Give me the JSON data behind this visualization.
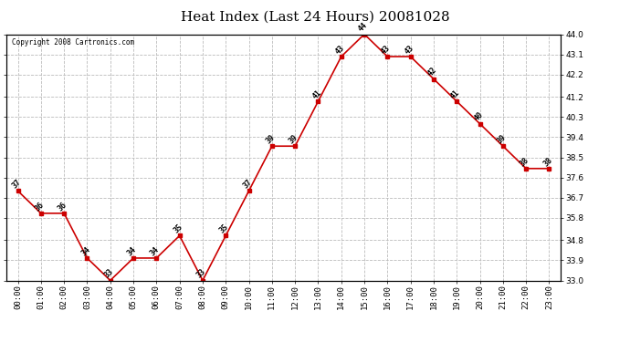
{
  "title": "Heat Index (Last 24 Hours) 20081028",
  "copyright_text": "Copyright 2008 Cartronics.com",
  "hours": [
    "00:00",
    "01:00",
    "02:00",
    "03:00",
    "04:00",
    "05:00",
    "06:00",
    "07:00",
    "08:00",
    "09:00",
    "10:00",
    "11:00",
    "12:00",
    "13:00",
    "14:00",
    "15:00",
    "16:00",
    "17:00",
    "18:00",
    "19:00",
    "20:00",
    "21:00",
    "22:00",
    "23:00"
  ],
  "values": [
    37,
    36,
    36,
    34,
    33,
    34,
    34,
    35,
    33,
    35,
    37,
    39,
    39,
    41,
    43,
    44,
    43,
    43,
    42,
    41,
    40,
    39,
    38,
    38
  ],
  "line_color": "#cc0000",
  "marker_color": "#cc0000",
  "bg_color": "#ffffff",
  "plot_bg_color": "#ffffff",
  "grid_color": "#bbbbbb",
  "ylim_min": 33.0,
  "ylim_max": 44.0,
  "yticks": [
    33.0,
    33.9,
    34.8,
    35.8,
    36.7,
    37.6,
    38.5,
    39.4,
    40.3,
    41.2,
    42.2,
    43.1,
    44.0
  ],
  "title_fontsize": 11,
  "tick_fontsize": 6.5,
  "annotation_fontsize": 6,
  "copyright_fontsize": 5.5
}
